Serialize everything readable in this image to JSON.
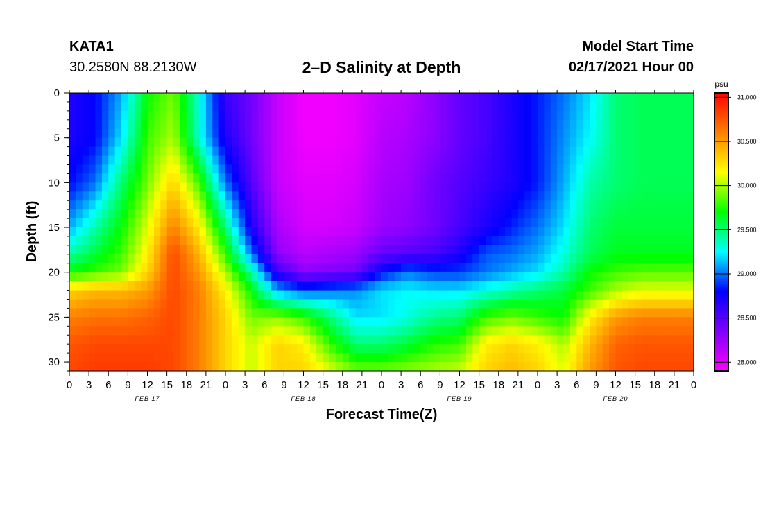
{
  "header": {
    "station": "KATA1",
    "coords": "30.2580N 88.2130W",
    "title": "2–D Salinity at Depth",
    "start_label": "Model Start Time",
    "start_value": "02/17/2021 Hour 00"
  },
  "chart_data": {
    "type": "heatmap",
    "title": "2–D Salinity at Depth",
    "xlabel": "Forecast Time(Z)",
    "ylabel": "Depth (ft)",
    "x_tick_labels": [
      "0",
      "3",
      "6",
      "9",
      "12",
      "15",
      "18",
      "21",
      "0",
      "3",
      "6",
      "9",
      "12",
      "15",
      "18",
      "21",
      "0",
      "3",
      "6",
      "9",
      "12",
      "15",
      "18",
      "21",
      "0",
      "3",
      "6",
      "9",
      "12",
      "15",
      "18",
      "21",
      "0"
    ],
    "x_range_hours": [
      0,
      96
    ],
    "date_labels": [
      {
        "text": "FEB 17",
        "hour": 12
      },
      {
        "text": "FEB 18",
        "hour": 36
      },
      {
        "text": "FEB 19",
        "hour": 60
      },
      {
        "text": "FEB 20",
        "hour": 84
      }
    ],
    "y_ticks": [
      0,
      5,
      10,
      15,
      20,
      25,
      30
    ],
    "y_range": [
      0,
      31
    ],
    "y_inverted": true,
    "colorbar": {
      "unit": "psu",
      "range": [
        27.9,
        31.05
      ],
      "tick_values": [
        28.0,
        28.5,
        29.0,
        29.5,
        30.0,
        30.5,
        31.0
      ],
      "tick_labels": [
        "28.000",
        "28.500",
        "29.000",
        "29.500",
        "30.000",
        "30.500",
        "31.000"
      ],
      "colors": [
        "#ff00ff",
        "#8000ff",
        "#0000ff",
        "#00ffff",
        "#00ff00",
        "#ffff00",
        "#ff8000",
        "#ff0000"
      ]
    },
    "grid_time_hours": [
      0,
      4,
      8,
      12,
      16,
      20,
      24,
      28,
      32,
      36,
      40,
      44,
      48,
      52,
      56,
      60,
      64,
      68,
      72,
      76,
      80,
      84,
      88,
      92,
      96
    ],
    "grid_depth_ft": [
      0,
      5,
      10,
      15,
      18,
      20,
      22,
      25,
      28,
      31
    ],
    "salinity": [
      [
        28.7,
        28.8,
        29.1,
        29.7,
        29.9,
        29.3,
        28.6,
        28.4,
        28.1,
        27.95,
        27.95,
        28.0,
        28.1,
        28.15,
        28.3,
        28.45,
        28.55,
        28.7,
        28.85,
        29.0,
        29.2,
        29.5,
        29.55,
        29.55,
        29.55
      ],
      [
        28.7,
        28.8,
        29.2,
        29.8,
        30.0,
        29.3,
        28.7,
        28.4,
        28.1,
        27.95,
        27.95,
        28.0,
        28.15,
        28.2,
        28.3,
        28.45,
        28.55,
        28.7,
        28.85,
        29.05,
        29.25,
        29.5,
        29.55,
        29.55,
        29.55
      ],
      [
        28.8,
        29.0,
        29.5,
        29.9,
        30.3,
        29.8,
        29.0,
        28.5,
        28.1,
        28.0,
        28.0,
        28.05,
        28.2,
        28.25,
        28.4,
        28.5,
        28.6,
        28.7,
        28.85,
        29.1,
        29.4,
        29.5,
        29.55,
        29.55,
        29.55
      ],
      [
        29.1,
        29.4,
        29.7,
        30.1,
        30.6,
        30.2,
        29.5,
        28.7,
        28.2,
        28.05,
        28.05,
        28.1,
        28.25,
        28.3,
        28.4,
        28.55,
        28.7,
        28.85,
        29.0,
        29.2,
        29.5,
        29.6,
        29.6,
        29.6,
        29.6
      ],
      [
        29.4,
        29.6,
        29.8,
        30.2,
        30.8,
        30.4,
        29.8,
        29.0,
        28.3,
        28.15,
        28.2,
        28.25,
        28.45,
        28.5,
        28.55,
        28.7,
        28.95,
        29.0,
        29.1,
        29.3,
        29.55,
        29.65,
        29.65,
        29.65,
        29.65
      ],
      [
        29.7,
        29.8,
        29.9,
        30.3,
        30.8,
        30.5,
        30.0,
        29.4,
        28.6,
        28.3,
        28.35,
        28.4,
        28.8,
        29.0,
        28.9,
        28.9,
        29.0,
        29.1,
        29.2,
        29.4,
        29.7,
        29.8,
        29.85,
        29.85,
        29.85
      ],
      [
        30.3,
        30.4,
        30.4,
        30.5,
        30.8,
        30.6,
        30.2,
        29.7,
        29.1,
        28.95,
        29.0,
        29.05,
        29.2,
        29.25,
        29.2,
        29.2,
        29.3,
        29.4,
        29.5,
        29.6,
        29.8,
        30.0,
        30.1,
        30.1,
        30.1
      ],
      [
        30.6,
        30.65,
        30.65,
        30.7,
        30.8,
        30.6,
        30.3,
        29.9,
        29.95,
        29.8,
        29.5,
        29.2,
        29.2,
        29.3,
        29.45,
        29.5,
        29.8,
        29.9,
        29.8,
        29.7,
        30.2,
        30.5,
        30.6,
        30.6,
        30.6
      ],
      [
        30.75,
        30.8,
        30.8,
        30.8,
        30.8,
        30.6,
        30.3,
        30.05,
        30.3,
        30.2,
        29.8,
        29.5,
        29.5,
        29.6,
        29.75,
        29.8,
        30.2,
        30.3,
        30.2,
        30.0,
        30.4,
        30.7,
        30.75,
        30.75,
        30.75
      ],
      [
        30.8,
        30.85,
        30.85,
        30.85,
        30.8,
        30.6,
        30.3,
        30.05,
        30.3,
        30.3,
        30.1,
        29.9,
        29.9,
        29.95,
        30.0,
        30.05,
        30.3,
        30.4,
        30.3,
        30.1,
        30.5,
        30.75,
        30.8,
        30.8,
        30.8
      ]
    ]
  }
}
